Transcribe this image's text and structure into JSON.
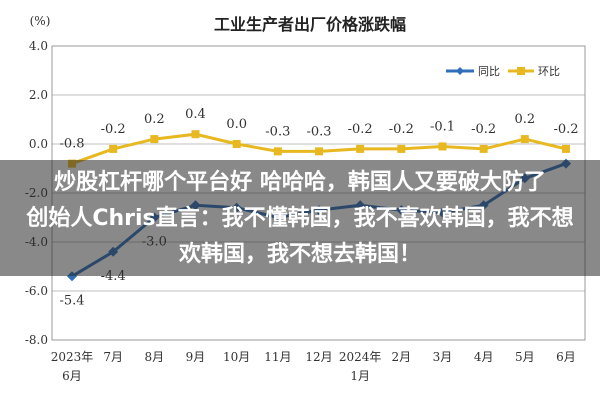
{
  "chart_data": {
    "type": "line",
    "title": "工业生产者出厂价格涨跌幅",
    "unit_label": "(%)",
    "categories": [
      [
        "2023年",
        "6月"
      ],
      [
        "7月"
      ],
      [
        "8月"
      ],
      [
        "9月"
      ],
      [
        "10月"
      ],
      [
        "11月"
      ],
      [
        "12月"
      ],
      [
        "2024年",
        "1月"
      ],
      [
        "2月"
      ],
      [
        "3月"
      ],
      [
        "4月"
      ],
      [
        "5月"
      ],
      [
        "6月"
      ]
    ],
    "y_ticks": [
      "4.0",
      "2.0",
      "0.0",
      "-2.0",
      "-4.0",
      "-6.0",
      "-8.0"
    ],
    "ylim": [
      -8,
      4
    ],
    "series": [
      {
        "name": "同比",
        "color": "#2f6fba",
        "values": [
          -5.4,
          -4.4,
          -3.0,
          -2.5,
          -2.6,
          -3.0,
          -2.7,
          -2.5,
          -2.7,
          -2.8,
          -2.5,
          -1.4,
          -0.8
        ],
        "labels": [
          "-5.4",
          "-4.4",
          "-3.0",
          "",
          "",
          "",
          "",
          "",
          "",
          "",
          "",
          "",
          ""
        ]
      },
      {
        "name": "环比",
        "color": "#e8b820",
        "values": [
          -0.8,
          -0.2,
          0.2,
          0.4,
          0.0,
          -0.3,
          -0.3,
          -0.2,
          -0.2,
          -0.1,
          -0.2,
          0.2,
          -0.2
        ],
        "labels": [
          "-0.8",
          "-0.2",
          "0.2",
          "0.4",
          "0.0",
          "-0.3",
          "-0.3",
          "-0.2",
          "-0.2",
          "-0.1",
          "-0.2",
          "0.2",
          "-0.2"
        ]
      }
    ],
    "legend_position": "top-right",
    "grid": true
  },
  "overlay": {
    "line1": "炒股杠杆哪个平台好 哈哈哈，韩国人又要破大防了",
    "line2": "创始人Chris直言：我不懂韩国，我不喜欢韩国，我不想",
    "line3": "欢韩国，我不想去韩国！"
  }
}
